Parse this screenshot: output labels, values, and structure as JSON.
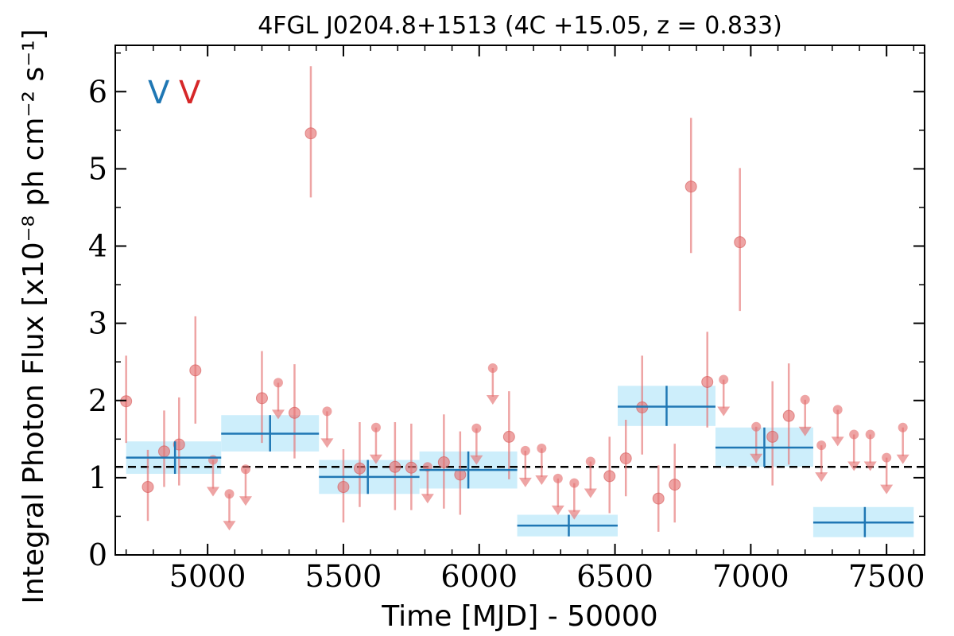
{
  "chart_data": {
    "type": "scatter",
    "title": "4FGL J0204.8+1513 (4C +15.05, z = 0.833)",
    "xlabel": "Time [MJD] - 50000",
    "ylabel": "Integral Photon Flux [x10⁻⁸ ph cm⁻² s⁻¹]",
    "xlim": [
      4660,
      7640
    ],
    "ylim": [
      0,
      6.6
    ],
    "xticks": [
      5000,
      5500,
      6000,
      6500,
      7000,
      7500
    ],
    "yticks": [
      0,
      1,
      2,
      3,
      4,
      5,
      6
    ],
    "grid": false,
    "variability_tags": [
      {
        "text": "V",
        "color": "#1f77b4"
      },
      {
        "text": "V",
        "color": "#d62728"
      }
    ],
    "reference_line": {
      "y": 1.14,
      "style": "dashed",
      "color": "#000000"
    },
    "series": [
      {
        "role": "short_bins",
        "color": "#e57373",
        "detections": [
          {
            "x": 4700,
            "y": 1.99,
            "ylo": 1.45,
            "yhi": 2.58
          },
          {
            "x": 4780,
            "y": 0.88,
            "ylo": 0.44,
            "yhi": 1.36
          },
          {
            "x": 4840,
            "y": 1.34,
            "ylo": 0.88,
            "yhi": 1.87
          },
          {
            "x": 4895,
            "y": 1.43,
            "ylo": 0.9,
            "yhi": 2.04
          },
          {
            "x": 4955,
            "y": 2.39,
            "ylo": 1.7,
            "yhi": 3.09
          },
          {
            "x": 5200,
            "y": 2.03,
            "ylo": 1.45,
            "yhi": 2.64
          },
          {
            "x": 5320,
            "y": 1.84,
            "ylo": 1.25,
            "yhi": 2.47
          },
          {
            "x": 5380,
            "y": 5.46,
            "ylo": 4.63,
            "yhi": 6.33
          },
          {
            "x": 5500,
            "y": 0.88,
            "ylo": 0.42,
            "yhi": 1.37
          },
          {
            "x": 5560,
            "y": 1.12,
            "ylo": 0.62,
            "yhi": 1.72
          },
          {
            "x": 5690,
            "y": 1.14,
            "ylo": 0.58,
            "yhi": 1.72
          },
          {
            "x": 5750,
            "y": 1.13,
            "ylo": 0.58,
            "yhi": 1.7
          },
          {
            "x": 5870,
            "y": 1.2,
            "ylo": 0.6,
            "yhi": 1.82
          },
          {
            "x": 5930,
            "y": 1.04,
            "ylo": 0.52,
            "yhi": 1.6
          },
          {
            "x": 6110,
            "y": 1.53,
            "ylo": 0.98,
            "yhi": 2.12
          },
          {
            "x": 6480,
            "y": 1.02,
            "ylo": 0.54,
            "yhi": 1.53
          },
          {
            "x": 6540,
            "y": 1.25,
            "ylo": 0.76,
            "yhi": 1.75
          },
          {
            "x": 6600,
            "y": 1.91,
            "ylo": 1.3,
            "yhi": 2.58
          },
          {
            "x": 6660,
            "y": 0.73,
            "ylo": 0.3,
            "yhi": 1.16
          },
          {
            "x": 6720,
            "y": 0.91,
            "ylo": 0.42,
            "yhi": 1.44
          },
          {
            "x": 6780,
            "y": 4.77,
            "ylo": 3.91,
            "yhi": 5.66
          },
          {
            "x": 6840,
            "y": 2.24,
            "ylo": 1.65,
            "yhi": 2.89
          },
          {
            "x": 6960,
            "y": 4.05,
            "ylo": 3.16,
            "yhi": 5.01
          },
          {
            "x": 7080,
            "y": 1.53,
            "ylo": 0.9,
            "yhi": 2.25
          },
          {
            "x": 7140,
            "y": 1.8,
            "ylo": 1.17,
            "yhi": 2.48
          }
        ],
        "upper_limits": [
          {
            "x": 5020,
            "y": 1.23
          },
          {
            "x": 5080,
            "y": 0.79
          },
          {
            "x": 5140,
            "y": 1.11
          },
          {
            "x": 5260,
            "y": 2.23
          },
          {
            "x": 5440,
            "y": 1.86
          },
          {
            "x": 5620,
            "y": 1.65
          },
          {
            "x": 5810,
            "y": 1.14
          },
          {
            "x": 5990,
            "y": 1.64
          },
          {
            "x": 6050,
            "y": 2.42
          },
          {
            "x": 6170,
            "y": 1.35
          },
          {
            "x": 6230,
            "y": 1.38
          },
          {
            "x": 6290,
            "y": 0.99
          },
          {
            "x": 6350,
            "y": 0.93
          },
          {
            "x": 6410,
            "y": 1.21
          },
          {
            "x": 6900,
            "y": 2.27
          },
          {
            "x": 7020,
            "y": 1.66
          },
          {
            "x": 7200,
            "y": 2.01
          },
          {
            "x": 7260,
            "y": 1.42
          },
          {
            "x": 7320,
            "y": 1.88
          },
          {
            "x": 7380,
            "y": 1.56
          },
          {
            "x": 7440,
            "y": 1.56
          },
          {
            "x": 7500,
            "y": 1.26
          },
          {
            "x": 7560,
            "y": 1.65
          }
        ]
      },
      {
        "role": "long_bins",
        "color": "#1f77b4",
        "band_color": "#cdeefb",
        "points": [
          {
            "x": 4880,
            "xlo": 4700,
            "xhi": 5050,
            "y": 1.26,
            "ylo": 1.05,
            "yhi": 1.47
          },
          {
            "x": 5230,
            "xlo": 5050,
            "xhi": 5410,
            "y": 1.57,
            "ylo": 1.34,
            "yhi": 1.81
          },
          {
            "x": 5590,
            "xlo": 5410,
            "xhi": 5780,
            "y": 1.01,
            "ylo": 0.79,
            "yhi": 1.23
          },
          {
            "x": 5960,
            "xlo": 5780,
            "xhi": 6140,
            "y": 1.1,
            "ylo": 0.86,
            "yhi": 1.34
          },
          {
            "x": 6330,
            "xlo": 6140,
            "xhi": 6510,
            "y": 0.38,
            "ylo": 0.24,
            "yhi": 0.52
          },
          {
            "x": 6690,
            "xlo": 6510,
            "xhi": 6870,
            "y": 1.92,
            "ylo": 1.67,
            "yhi": 2.19
          },
          {
            "x": 7050,
            "xlo": 6870,
            "xhi": 7230,
            "y": 1.39,
            "ylo": 1.14,
            "yhi": 1.65
          },
          {
            "x": 7420,
            "xlo": 7230,
            "xhi": 7600,
            "y": 0.42,
            "ylo": 0.23,
            "yhi": 0.62
          }
        ]
      }
    ]
  }
}
